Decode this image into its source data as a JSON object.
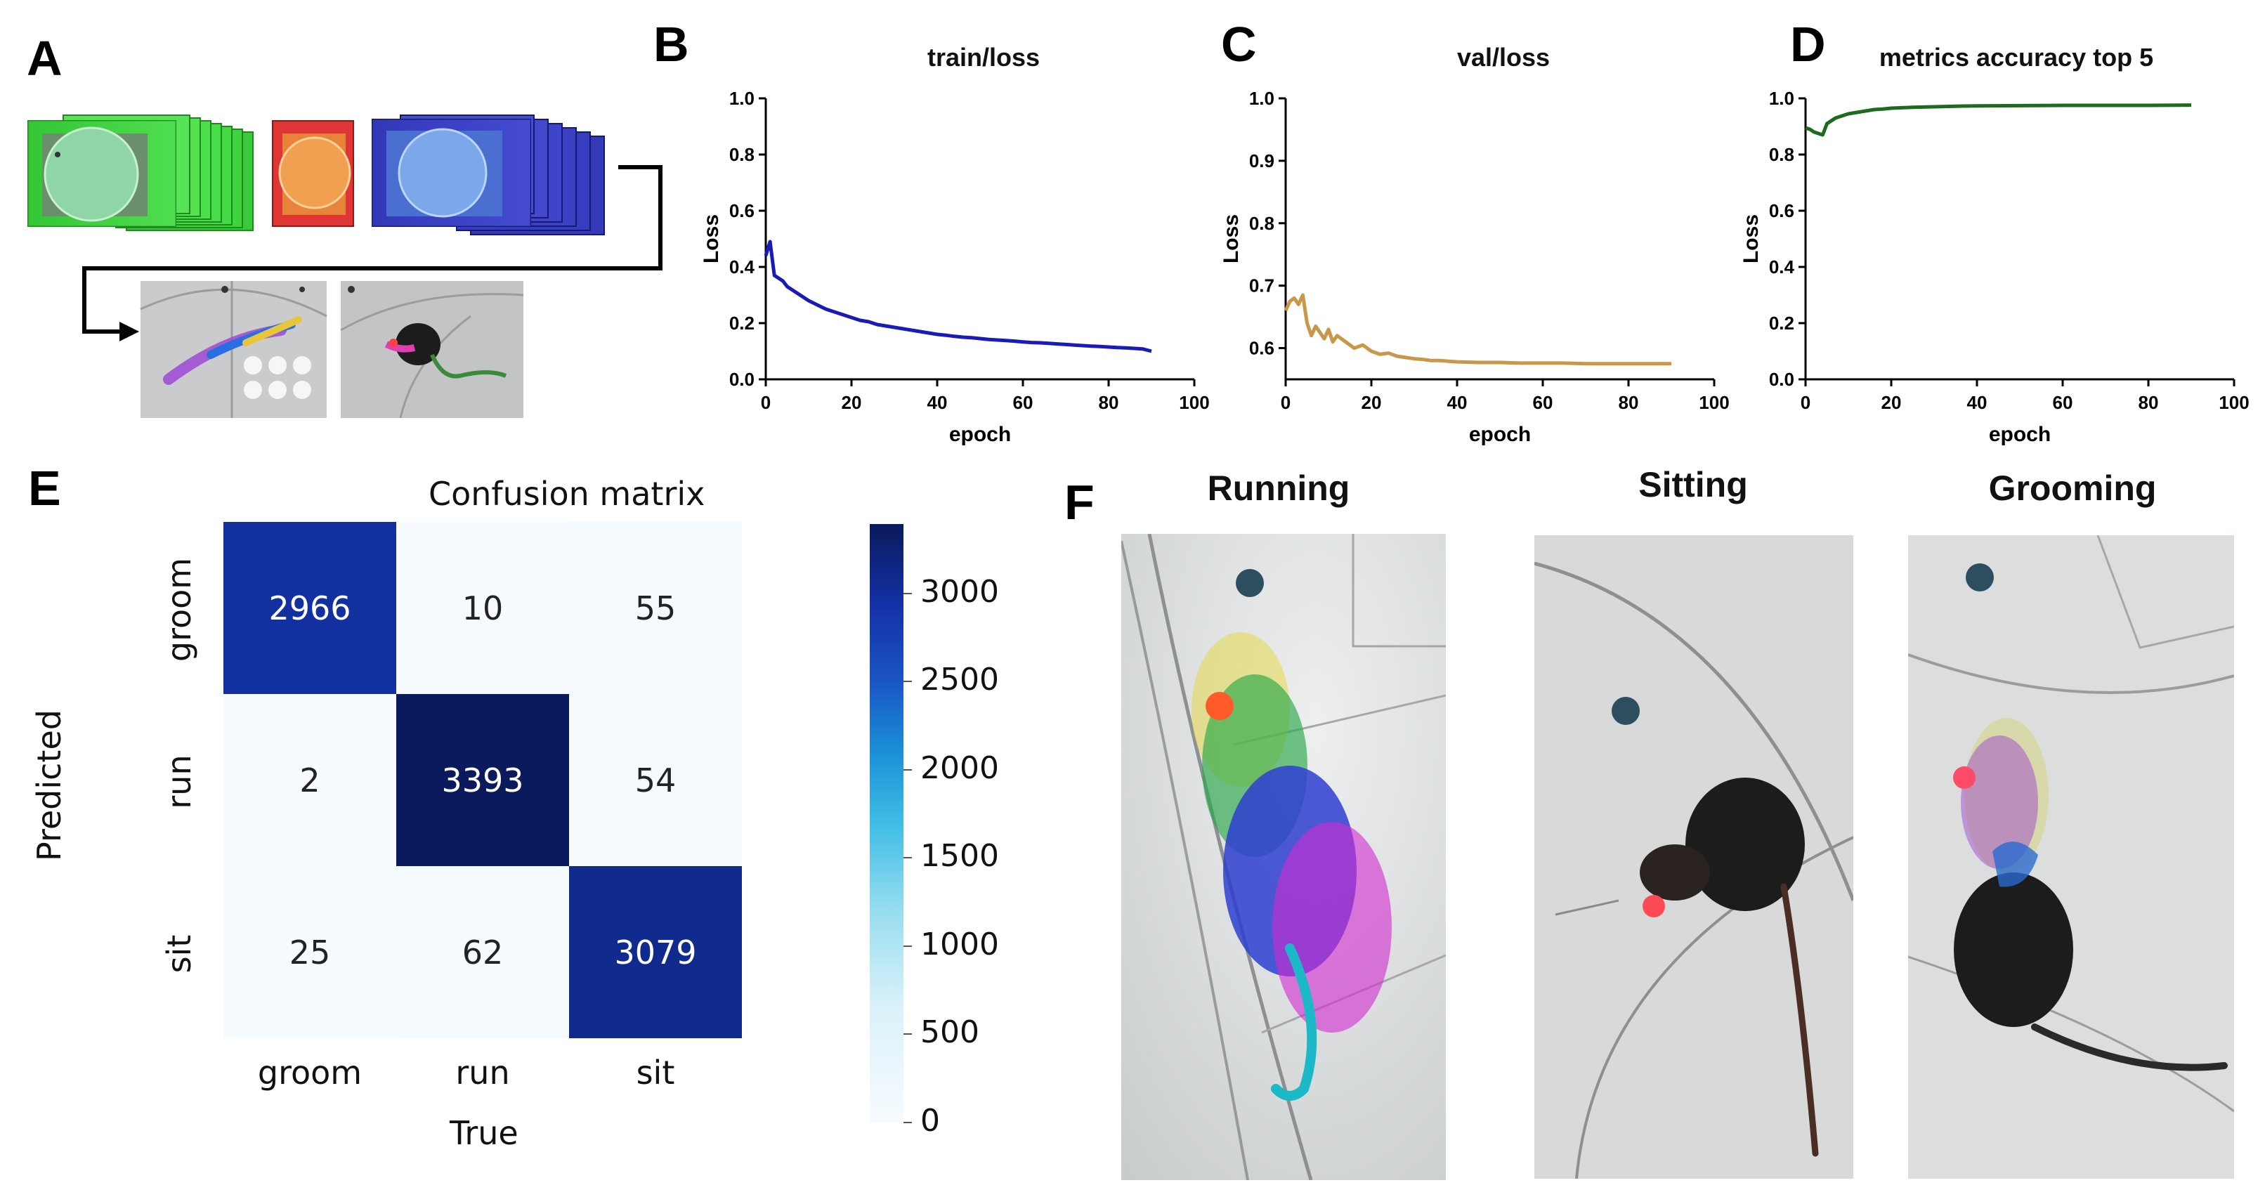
{
  "panels": {
    "A": "A",
    "B": "B",
    "C": "C",
    "D": "D",
    "E": "E",
    "F": "F"
  },
  "chart_data": [
    {
      "id": "B",
      "type": "line",
      "title": "train/loss",
      "xlabel": "epoch",
      "ylabel": "Loss",
      "xlim": [
        0,
        100
      ],
      "ylim": [
        0.0,
        1.0
      ],
      "xticks": [
        "0",
        "20",
        "40",
        "60",
        "80",
        "100"
      ],
      "yticks": [
        "0.0",
        "0.2",
        "0.4",
        "0.6",
        "0.8",
        "1.0"
      ],
      "color": "#1a1ab8",
      "x": [
        0,
        1,
        2,
        3,
        4,
        5,
        6,
        7,
        8,
        10,
        12,
        14,
        16,
        18,
        20,
        22,
        24,
        26,
        28,
        30,
        32,
        34,
        36,
        38,
        40,
        42,
        44,
        46,
        48,
        50,
        52,
        54,
        56,
        58,
        60,
        62,
        64,
        66,
        68,
        70,
        72,
        74,
        76,
        78,
        80,
        82,
        84,
        86,
        88,
        90
      ],
      "y": [
        0.44,
        0.49,
        0.37,
        0.36,
        0.35,
        0.33,
        0.32,
        0.31,
        0.3,
        0.28,
        0.265,
        0.25,
        0.24,
        0.23,
        0.22,
        0.21,
        0.205,
        0.195,
        0.19,
        0.185,
        0.18,
        0.175,
        0.17,
        0.165,
        0.16,
        0.157,
        0.153,
        0.15,
        0.148,
        0.145,
        0.142,
        0.14,
        0.138,
        0.136,
        0.133,
        0.131,
        0.13,
        0.128,
        0.126,
        0.124,
        0.122,
        0.12,
        0.118,
        0.117,
        0.115,
        0.113,
        0.112,
        0.11,
        0.108,
        0.1
      ]
    },
    {
      "id": "C",
      "type": "line",
      "title": "val/loss",
      "xlabel": "epoch",
      "ylabel": "Loss",
      "xlim": [
        0,
        100
      ],
      "ylim": [
        0.55,
        1.0
      ],
      "xticks": [
        "0",
        "20",
        "40",
        "60",
        "80",
        "100"
      ],
      "yticks": [
        "0.6",
        "0.7",
        "0.8",
        "0.9",
        "1.0"
      ],
      "ytick_values": [
        0.6,
        0.7,
        0.8,
        0.9,
        1.0
      ],
      "color": "#c9974a",
      "x": [
        0,
        1,
        2,
        3,
        4,
        5,
        6,
        7,
        8,
        9,
        10,
        11,
        12,
        14,
        16,
        18,
        20,
        22,
        24,
        26,
        28,
        30,
        32,
        34,
        36,
        38,
        40,
        45,
        50,
        55,
        60,
        65,
        70,
        75,
        80,
        85,
        90
      ],
      "y": [
        0.66,
        0.675,
        0.68,
        0.67,
        0.685,
        0.64,
        0.62,
        0.635,
        0.625,
        0.615,
        0.63,
        0.61,
        0.62,
        0.61,
        0.6,
        0.605,
        0.595,
        0.59,
        0.592,
        0.587,
        0.585,
        0.583,
        0.582,
        0.58,
        0.58,
        0.579,
        0.578,
        0.577,
        0.577,
        0.576,
        0.576,
        0.576,
        0.575,
        0.575,
        0.575,
        0.575,
        0.575
      ]
    },
    {
      "id": "D",
      "type": "line",
      "title": "metrics accuracy top 5",
      "xlabel": "epoch",
      "ylabel": "Loss",
      "xlim": [
        0,
        100
      ],
      "ylim": [
        0.0,
        1.0
      ],
      "xticks": [
        "0",
        "20",
        "40",
        "60",
        "80",
        "100"
      ],
      "yticks": [
        "0.0",
        "0.2",
        "0.4",
        "0.6",
        "0.8",
        "1.0"
      ],
      "color": "#1e6a1e",
      "x": [
        0,
        1,
        2,
        3,
        4,
        5,
        6,
        7,
        8,
        10,
        12,
        14,
        16,
        18,
        20,
        25,
        30,
        35,
        40,
        50,
        60,
        70,
        80,
        90
      ],
      "y": [
        0.895,
        0.89,
        0.88,
        0.875,
        0.87,
        0.91,
        0.92,
        0.93,
        0.935,
        0.945,
        0.95,
        0.955,
        0.96,
        0.962,
        0.965,
        0.968,
        0.97,
        0.972,
        0.973,
        0.974,
        0.975,
        0.975,
        0.975,
        0.976
      ]
    },
    {
      "id": "E",
      "type": "heatmap",
      "title": "Confusion matrix",
      "xlabel": "True",
      "ylabel": "Predicted",
      "x_categories": [
        "groom",
        "run",
        "sit"
      ],
      "y_categories": [
        "groom",
        "run",
        "sit"
      ],
      "values": [
        [
          2966,
          10,
          55
        ],
        [
          2,
          3393,
          54
        ],
        [
          25,
          62,
          3079
        ]
      ],
      "value_labels": [
        [
          "2966",
          "10",
          "55"
        ],
        [
          "2",
          "3393",
          "54"
        ],
        [
          "25",
          "62",
          "3079"
        ]
      ],
      "colorbar_ticks": [
        "0",
        "500",
        "1000",
        "1500",
        "2000",
        "2500",
        "3000"
      ],
      "colorbar_tick_values": [
        0,
        500,
        1000,
        1500,
        2000,
        2500,
        3000
      ],
      "vmin": 0,
      "vmax": 3393
    }
  ],
  "panelA": {
    "frame_colors": [
      "#3ed43e",
      "#e03535",
      "#3a3fc4"
    ]
  },
  "panelF": {
    "titles": [
      "Running",
      "Sitting",
      "Grooming"
    ]
  }
}
